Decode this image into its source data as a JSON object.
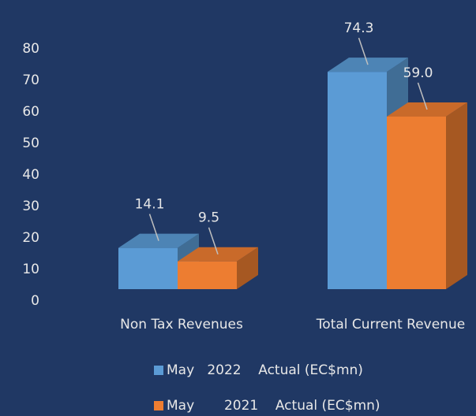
{
  "chart_data": {
    "type": "bar3d",
    "categories": [
      "Non Tax Revenues",
      "Total Current Revenue"
    ],
    "series": [
      {
        "name": "May   2022    Actual (EC$mn)",
        "color": "#5b9bd5",
        "values": [
          14.1,
          74.3
        ],
        "value_labels": [
          "14.1",
          "74.3"
        ]
      },
      {
        "name": "May       2021    Actual (EC$mn)",
        "color": "#ed7d31",
        "values": [
          9.5,
          59.0
        ],
        "value_labels": [
          "9.5",
          "59.0"
        ]
      }
    ],
    "ylim": [
      0,
      80
    ],
    "yticks": [
      0,
      10,
      20,
      30,
      40,
      50,
      60,
      70,
      80
    ],
    "legend": "bottom"
  }
}
